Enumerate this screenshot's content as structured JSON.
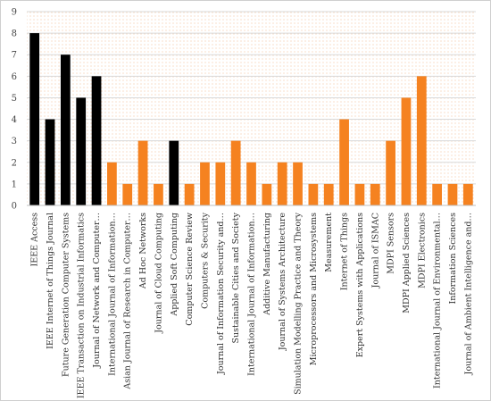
{
  "chart_data": {
    "type": "bar",
    "title": "",
    "xlabel": "",
    "ylabel": "",
    "ylim": [
      0,
      9
    ],
    "yticks": [
      0,
      1,
      2,
      3,
      4,
      5,
      6,
      7,
      8,
      9
    ],
    "grid": true,
    "legend": "none",
    "colors": {
      "ieee_series": "#000000",
      "other_series": "#f58220",
      "gridline": "#d9d9d9",
      "plot_pattern": "#f4c7a4"
    },
    "categories": [
      "IEEE Access",
      "IEEE Internet of Things Journal",
      "Future Generation Computer Systems",
      "IEEE Transaction on Industrial Informatics",
      "Journal of Network and Computer…",
      "International Journal of Information…",
      "Asian Journal of Research in Computer…",
      "Ad Hoc Networks",
      "Journal of Cloud Computing",
      "Applied Soft Computing",
      "Computer Science Review",
      "Computers & Security",
      "Journal of Information Security and…",
      "Sustainable Cities and Society",
      "International Journal of Information…",
      "Additive Manufacturing",
      "Journal of Systems Architecture",
      "Simulation Modelling Practice and Theory",
      "Microprocessors and Microsystems",
      "Measurement",
      "Internet of Things",
      "Expert Systems with Applications",
      "Journal of ISMAC",
      "MDPI Sensors",
      "MDPI Applied Sciences",
      "MDPI Electronics",
      "International Journal of Environmental…",
      "Information Sciences",
      "Journal of Ambient Intelligence and…"
    ],
    "values": [
      8,
      4,
      7,
      5,
      6,
      2,
      1,
      3,
      1,
      3,
      1,
      2,
      2,
      3,
      2,
      1,
      2,
      2,
      1,
      1,
      4,
      1,
      1,
      3,
      5,
      6,
      1,
      1,
      1
    ],
    "bar_color_keys": [
      "ieee_series",
      "ieee_series",
      "ieee_series",
      "ieee_series",
      "ieee_series",
      "other_series",
      "other_series",
      "other_series",
      "other_series",
      "ieee_series",
      "other_series",
      "other_series",
      "other_series",
      "other_series",
      "other_series",
      "other_series",
      "other_series",
      "other_series",
      "other_series",
      "other_series",
      "other_series",
      "other_series",
      "other_series",
      "other_series",
      "other_series",
      "other_series",
      "other_series",
      "other_series",
      "other_series"
    ]
  }
}
